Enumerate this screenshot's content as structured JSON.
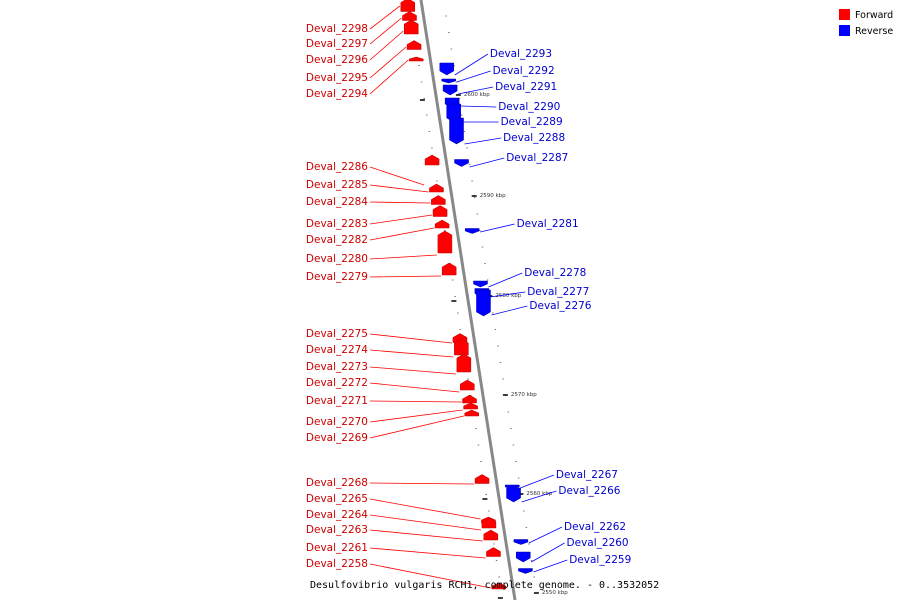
{
  "caption": "Desulfovibrio vulgaris RCH1, complete genome. - 0..3532052",
  "legend": [
    {
      "label": "Forward",
      "color": "#ff0000"
    },
    {
      "label": "Reverse",
      "color": "#0000ff"
    }
  ],
  "kbp_marks": [
    "2600 kbp",
    "2590 kbp",
    "2580 kbp",
    "2570 kbp",
    "2560 kbp",
    "2550 kbp"
  ],
  "forward_genes": [
    "Deval_2298",
    "Deval_2297",
    "Deval_2296",
    "Deval_2295",
    "Deval_2294",
    "Deval_2286",
    "Deval_2285",
    "Deval_2284",
    "Deval_2283",
    "Deval_2282",
    "Deval_2280",
    "Deval_2279",
    "Deval_2275",
    "Deval_2274",
    "Deval_2273",
    "Deval_2272",
    "Deval_2271",
    "Deval_2270",
    "Deval_2269",
    "Deval_2268",
    "Deval_2265",
    "Deval_2264",
    "Deval_2263",
    "Deval_2261",
    "Deval_2258"
  ],
  "reverse_genes": [
    "Deval_2293",
    "Deval_2292",
    "Deval_2291",
    "Deval_2290",
    "Deval_2289",
    "Deval_2288",
    "Deval_2287",
    "Deval_2281",
    "Deval_2278",
    "Deval_2277",
    "Deval_2276",
    "Deval_2267",
    "Deval_2266",
    "Deval_2262",
    "Deval_2260",
    "Deval_2259"
  ],
  "colors": {
    "forward": "#ff0000",
    "reverse": "#0000ff",
    "axis": "#888888"
  }
}
